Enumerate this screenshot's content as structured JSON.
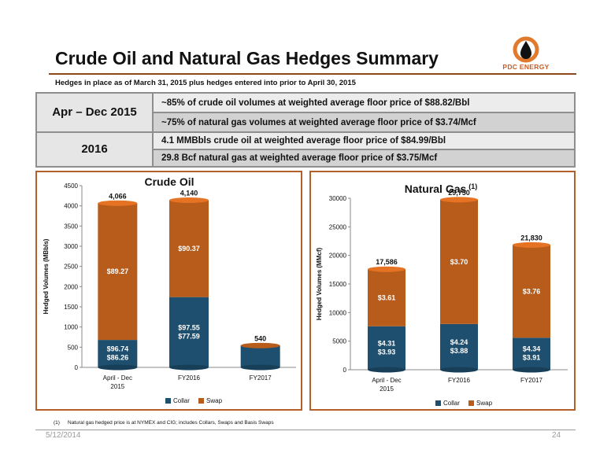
{
  "header": {
    "title": "Crude Oil and Natural Gas Hedges Summary",
    "subtitle": "Hedges in place as of March 31, 2015 plus hedges entered into prior to April 30, 2015",
    "logo_text": "PDC ENERGY"
  },
  "summary_table": {
    "rows": [
      {
        "period": "Apr – Dec 2015",
        "lines": [
          "~85% of crude oil volumes at weighted average floor price of $88.82/Bbl",
          "~75% of natural gas volumes at weighted average floor price of $3.74/Mcf"
        ]
      },
      {
        "period": "2016",
        "lines": [
          "4.1 MMBbls crude oil at weighted average floor price of $84.99/Bbl",
          "29.8 Bcf natural gas at weighted average floor price of $3.75/Mcf"
        ]
      }
    ]
  },
  "colors": {
    "collar": "#1e4f6e",
    "swap": "#b85c1c",
    "accent_border": "#b4602a"
  },
  "chart_data": [
    {
      "type": "bar",
      "stacked": true,
      "title": "Crude Oil",
      "xlabel": "",
      "ylabel": "Hedged Volumes (MBbls)",
      "ylim": [
        0,
        4500
      ],
      "yticks": [
        0,
        500,
        1000,
        1500,
        2000,
        2500,
        3000,
        3500,
        4000,
        4500
      ],
      "categories": [
        "April - Dec 2015",
        "FY2016",
        "FY2017"
      ],
      "series": [
        {
          "name": "Collar",
          "values": [
            680,
            1740,
            540
          ]
        },
        {
          "name": "Swap",
          "values": [
            3386,
            2400,
            0
          ]
        }
      ],
      "totals": [
        "4,066",
        "4,140",
        "540"
      ],
      "collar_labels": [
        [
          "$96.74",
          "$86.26"
        ],
        [
          "$97.55",
          "$77.59"
        ],
        []
      ],
      "swap_labels": [
        "$89.27",
        "$90.37",
        ""
      ],
      "legend": "bottom",
      "legend_labels": [
        "Collar",
        "Swap"
      ]
    },
    {
      "type": "bar",
      "stacked": true,
      "title": "Natural Gas",
      "title_note": "(1)",
      "xlabel": "",
      "ylabel": "Hedged Volumes (MMcf)",
      "ylim": [
        0,
        30000
      ],
      "yticks": [
        0,
        5000,
        10000,
        15000,
        20000,
        25000,
        30000
      ],
      "categories": [
        "April - Dec 2015",
        "FY2016",
        "FY2017"
      ],
      "series": [
        {
          "name": "Collar",
          "values": [
            7600,
            8000,
            5600
          ]
        },
        {
          "name": "Swap",
          "values": [
            9986,
            21750,
            16230
          ]
        }
      ],
      "totals": [
        "17,586",
        "29,750",
        "21,830"
      ],
      "collar_labels": [
        [
          "$4.31",
          "$3.93"
        ],
        [
          "$4.24",
          "$3.88"
        ],
        [
          "$4.34",
          "$3.91"
        ]
      ],
      "swap_labels": [
        "$3.61",
        "$3.70",
        "$3.76"
      ],
      "legend": "bottom",
      "legend_labels": [
        "Collar",
        "Swap"
      ]
    }
  ],
  "footnote": {
    "number": "(1)",
    "text": "Natural gas hedged price is at NYMEX and CIG; includes Collars, Swaps and Basis Swaps"
  },
  "footer": {
    "date": "5/12/2014",
    "page": "24"
  }
}
